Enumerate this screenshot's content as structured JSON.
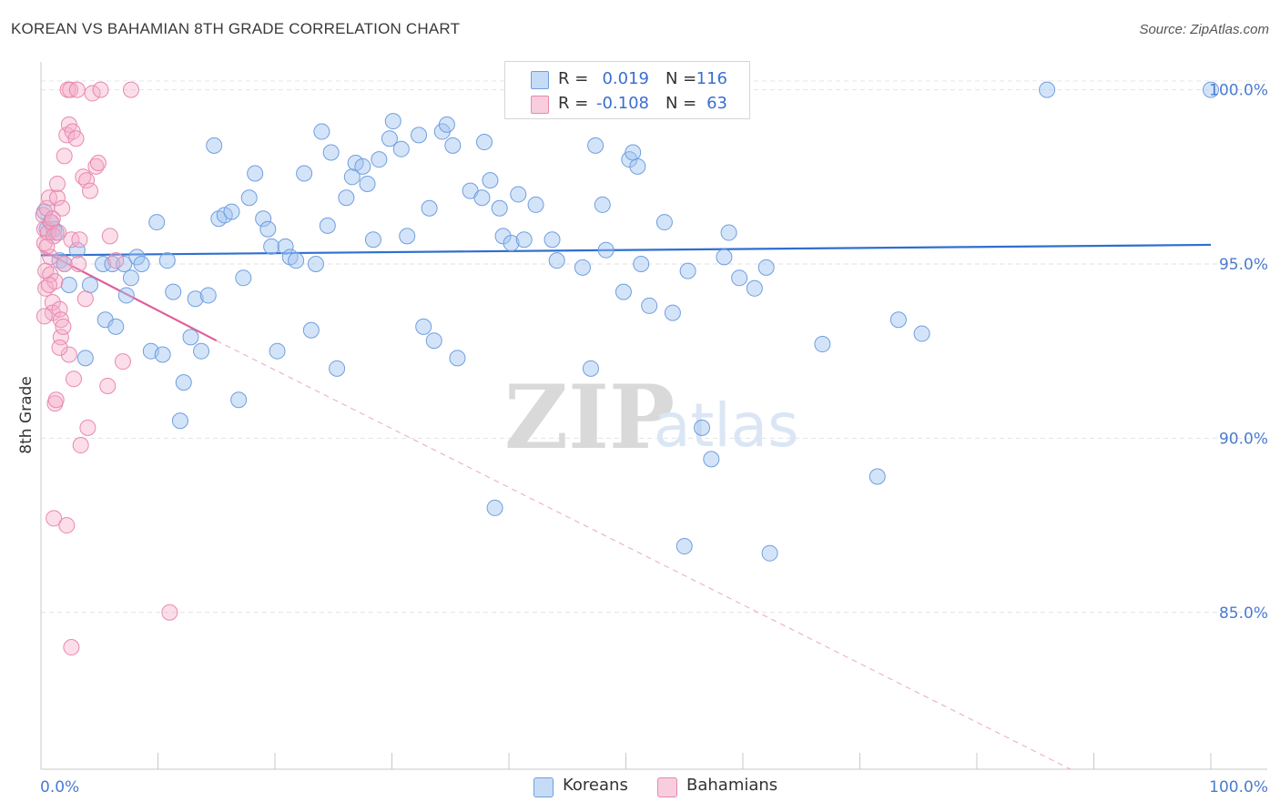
{
  "chart_data": {
    "type": "scatter",
    "title": "KOREAN VS BAHAMIAN 8TH GRADE CORRELATION CHART",
    "source": "Source: ZipAtlas.com",
    "ylabel": "8th Grade",
    "xlabel": "",
    "xlim": [
      0,
      100
    ],
    "ylim": [
      80.5,
      100.8
    ],
    "x_ticks": [
      0,
      10,
      20,
      30,
      40,
      50,
      60,
      70,
      80,
      90,
      100
    ],
    "x_tick_labels": {
      "start": "0.0%",
      "end": "100.0%"
    },
    "y_ticks": [
      100,
      95,
      90,
      85
    ],
    "y_tick_labels": [
      "100.0%",
      "95.0%",
      "90.0%",
      "85.0%"
    ],
    "grid": true,
    "legend_position": "top-center",
    "watermark": "ZIPatlas",
    "series": [
      {
        "name": "Koreans",
        "color": "#8ab4ec",
        "line_color": "#2f6fcf",
        "R": "0.019",
        "N": "116",
        "trend": {
          "x": [
            0,
            100
          ],
          "y": [
            95.25,
            95.55
          ],
          "style": "solid"
        },
        "points": [
          [
            0.3,
            96.5
          ],
          [
            0.5,
            96.0
          ],
          [
            0.8,
            96.2
          ],
          [
            1.1,
            96.0
          ],
          [
            1.3,
            95.9
          ],
          [
            1.6,
            95.1
          ],
          [
            2.0,
            95.0
          ],
          [
            2.4,
            94.4
          ],
          [
            3.1,
            95.4
          ],
          [
            3.8,
            92.3
          ],
          [
            4.2,
            94.4
          ],
          [
            5.3,
            95.0
          ],
          [
            5.5,
            93.4
          ],
          [
            6.1,
            95.0
          ],
          [
            6.4,
            93.2
          ],
          [
            7.1,
            95.0
          ],
          [
            7.3,
            94.1
          ],
          [
            7.7,
            94.6
          ],
          [
            8.2,
            95.2
          ],
          [
            8.6,
            95.0
          ],
          [
            9.4,
            92.5
          ],
          [
            9.9,
            96.2
          ],
          [
            10.4,
            92.4
          ],
          [
            10.8,
            95.1
          ],
          [
            11.3,
            94.2
          ],
          [
            11.9,
            90.5
          ],
          [
            12.2,
            91.6
          ],
          [
            12.8,
            92.9
          ],
          [
            13.2,
            94.0
          ],
          [
            13.7,
            92.5
          ],
          [
            14.3,
            94.1
          ],
          [
            14.8,
            98.4
          ],
          [
            15.2,
            96.3
          ],
          [
            15.7,
            96.4
          ],
          [
            16.3,
            96.5
          ],
          [
            16.9,
            91.1
          ],
          [
            17.3,
            94.6
          ],
          [
            17.8,
            96.9
          ],
          [
            18.3,
            97.6
          ],
          [
            19.0,
            96.3
          ],
          [
            19.4,
            96.0
          ],
          [
            19.7,
            95.5
          ],
          [
            20.2,
            92.5
          ],
          [
            20.9,
            95.5
          ],
          [
            21.3,
            95.2
          ],
          [
            21.8,
            95.1
          ],
          [
            22.5,
            97.6
          ],
          [
            23.1,
            93.1
          ],
          [
            23.5,
            95.0
          ],
          [
            24.0,
            98.8
          ],
          [
            24.5,
            96.1
          ],
          [
            24.8,
            98.2
          ],
          [
            25.3,
            92.0
          ],
          [
            26.1,
            96.9
          ],
          [
            26.6,
            97.5
          ],
          [
            26.9,
            97.9
          ],
          [
            27.5,
            97.8
          ],
          [
            27.9,
            97.3
          ],
          [
            28.4,
            95.7
          ],
          [
            28.9,
            98.0
          ],
          [
            29.8,
            98.6
          ],
          [
            30.1,
            99.1
          ],
          [
            30.8,
            98.3
          ],
          [
            31.3,
            95.8
          ],
          [
            32.3,
            98.7
          ],
          [
            32.7,
            93.2
          ],
          [
            33.2,
            96.6
          ],
          [
            33.6,
            92.8
          ],
          [
            34.3,
            98.8
          ],
          [
            34.7,
            99.0
          ],
          [
            35.2,
            98.4
          ],
          [
            35.6,
            92.3
          ],
          [
            36.7,
            97.1
          ],
          [
            37.7,
            96.9
          ],
          [
            37.9,
            98.5
          ],
          [
            38.4,
            97.4
          ],
          [
            38.8,
            88.0
          ],
          [
            39.2,
            96.6
          ],
          [
            39.5,
            95.8
          ],
          [
            40.2,
            95.6
          ],
          [
            40.8,
            97.0
          ],
          [
            41.3,
            95.7
          ],
          [
            42.3,
            96.7
          ],
          [
            42.8,
            100.0
          ],
          [
            43.7,
            95.7
          ],
          [
            44.1,
            95.1
          ],
          [
            46.3,
            94.9
          ],
          [
            47.0,
            92.0
          ],
          [
            47.4,
            98.4
          ],
          [
            48.0,
            96.7
          ],
          [
            48.3,
            95.4
          ],
          [
            48.8,
            100.0
          ],
          [
            49.8,
            94.2
          ],
          [
            50.3,
            98.0
          ],
          [
            50.6,
            98.2
          ],
          [
            51.0,
            97.8
          ],
          [
            51.3,
            95.0
          ],
          [
            52.0,
            93.8
          ],
          [
            53.3,
            96.2
          ],
          [
            54.0,
            93.6
          ],
          [
            55.0,
            86.9
          ],
          [
            55.3,
            94.8
          ],
          [
            56.5,
            90.3
          ],
          [
            57.3,
            89.4
          ],
          [
            58.4,
            95.2
          ],
          [
            58.8,
            95.9
          ],
          [
            59.7,
            94.6
          ],
          [
            61.0,
            94.3
          ],
          [
            62.0,
            94.9
          ],
          [
            62.3,
            86.7
          ],
          [
            66.8,
            92.7
          ],
          [
            71.5,
            88.9
          ],
          [
            73.3,
            93.4
          ],
          [
            75.3,
            93.0
          ],
          [
            86.0,
            100.0
          ],
          [
            100.0,
            100.0
          ]
        ]
      },
      {
        "name": "Bahamians",
        "color": "#f2a0bd",
        "line_color": "#e0609a",
        "R": "-0.108",
        "N": "63",
        "trend": {
          "x": [
            0,
            15
          ],
          "y": [
            95.4,
            92.8
          ],
          "style": "solid",
          "dashed_to": [
            88,
            80.5
          ]
        },
        "points": [
          [
            0.2,
            96.4
          ],
          [
            0.3,
            96.0
          ],
          [
            0.3,
            95.6
          ],
          [
            0.4,
            94.8
          ],
          [
            0.4,
            94.3
          ],
          [
            0.5,
            96.6
          ],
          [
            0.6,
            95.9
          ],
          [
            0.7,
            96.9
          ],
          [
            0.8,
            95.2
          ],
          [
            0.8,
            94.7
          ],
          [
            0.9,
            96.2
          ],
          [
            1.0,
            93.9
          ],
          [
            1.0,
            93.6
          ],
          [
            1.1,
            95.8
          ],
          [
            1.2,
            94.5
          ],
          [
            1.2,
            91.0
          ],
          [
            1.3,
            91.1
          ],
          [
            1.4,
            96.9
          ],
          [
            1.4,
            97.3
          ],
          [
            1.5,
            95.9
          ],
          [
            1.6,
            93.7
          ],
          [
            1.7,
            93.4
          ],
          [
            1.7,
            92.9
          ],
          [
            1.8,
            96.6
          ],
          [
            1.9,
            93.2
          ],
          [
            2.0,
            98.1
          ],
          [
            2.0,
            95.0
          ],
          [
            2.2,
            98.7
          ],
          [
            2.3,
            100.0
          ],
          [
            2.4,
            92.4
          ],
          [
            2.4,
            99.0
          ],
          [
            2.5,
            100.0
          ],
          [
            2.6,
            95.7
          ],
          [
            2.7,
            98.8
          ],
          [
            2.8,
            91.7
          ],
          [
            3.0,
            98.6
          ],
          [
            3.1,
            100.0
          ],
          [
            3.2,
            95.0
          ],
          [
            3.3,
            95.7
          ],
          [
            3.4,
            89.8
          ],
          [
            3.6,
            97.5
          ],
          [
            3.8,
            94.0
          ],
          [
            3.9,
            97.4
          ],
          [
            4.0,
            90.3
          ],
          [
            4.2,
            97.1
          ],
          [
            4.4,
            99.9
          ],
          [
            4.7,
            97.8
          ],
          [
            4.9,
            97.9
          ],
          [
            5.1,
            100.0
          ],
          [
            5.7,
            91.5
          ],
          [
            5.9,
            95.8
          ],
          [
            6.4,
            95.1
          ],
          [
            7.0,
            92.2
          ],
          [
            7.7,
            100.0
          ],
          [
            1.1,
            87.7
          ],
          [
            2.2,
            87.5
          ],
          [
            2.6,
            84.0
          ],
          [
            11.0,
            85.0
          ],
          [
            0.5,
            95.5
          ],
          [
            1.0,
            96.3
          ],
          [
            0.3,
            93.5
          ],
          [
            1.6,
            92.6
          ],
          [
            0.7,
            94.4
          ]
        ]
      }
    ]
  }
}
